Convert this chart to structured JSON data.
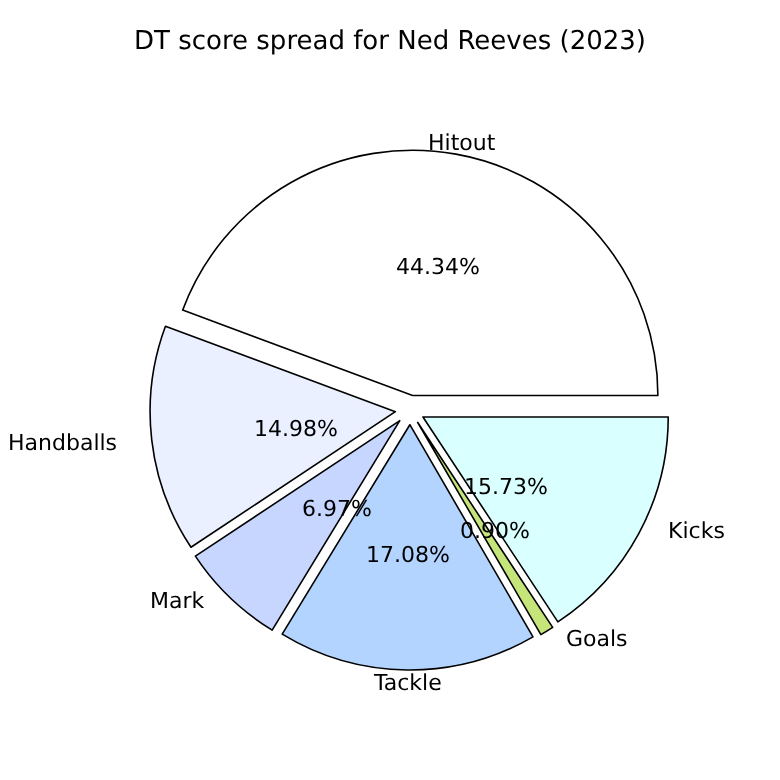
{
  "chart_data": {
    "type": "pie",
    "title": "DT score spread for Ned Reeves (2023)",
    "categories": [
      "Hitout",
      "Handballs",
      "Mark",
      "Tackle",
      "Goals",
      "Kicks"
    ],
    "values": [
      44.34,
      14.98,
      6.97,
      17.08,
      0.9,
      15.73
    ],
    "value_labels": [
      "44.34%",
      "14.98%",
      "6.97%",
      "17.08%",
      "0.90%",
      "15.73%"
    ],
    "colors": [
      "#ffffff",
      "#eaf0ff",
      "#c6d6ff",
      "#b3d4ff",
      "#c5e47a",
      "#d9ffff"
    ],
    "legend": false
  }
}
